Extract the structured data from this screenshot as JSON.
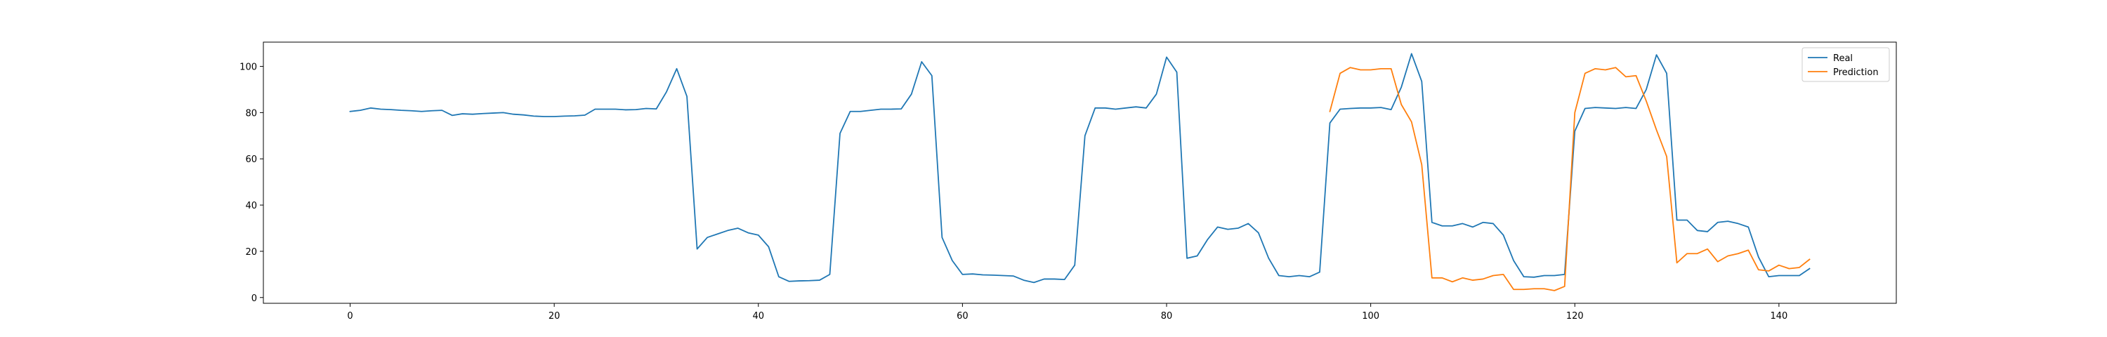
{
  "chart_data": {
    "type": "line",
    "title": "",
    "xlabel": "",
    "ylabel": "",
    "xlim": [
      -8.5,
      151.5
    ],
    "ylim": [
      -2.5,
      110.5
    ],
    "x_ticks": [
      0,
      20,
      40,
      60,
      80,
      100,
      120,
      140
    ],
    "y_ticks": [
      0,
      20,
      40,
      60,
      80,
      100
    ],
    "grid": false,
    "legend_position": "top-right",
    "series": [
      {
        "name": "Real",
        "color": "#1f77b4",
        "x_start": 0,
        "y": [
          80.5,
          81,
          82,
          81.5,
          81.3,
          81,
          80.8,
          80.5,
          80.8,
          81,
          78.8,
          79.5,
          79.3,
          79.6,
          79.8,
          80,
          79.3,
          79,
          78.5,
          78.3,
          78.3,
          78.5,
          78.6,
          78.9,
          81.5,
          81.5,
          81.5,
          81.2,
          81.3,
          81.8,
          81.6,
          89,
          99,
          87,
          21,
          26,
          27.5,
          29,
          30,
          28,
          27,
          22,
          9,
          7,
          7.2,
          7.3,
          7.5,
          10,
          71,
          80.5,
          80.5,
          81,
          81.5,
          81.5,
          81.6,
          88,
          102,
          96,
          26,
          16,
          10,
          10.2,
          9.8,
          9.7,
          9.5,
          9.3,
          7.5,
          6.5,
          8,
          8,
          7.8,
          14,
          70,
          82,
          82,
          81.5,
          82,
          82.5,
          82,
          88,
          104,
          97.5,
          17,
          18,
          25,
          30.5,
          29.5,
          30,
          32,
          28,
          17,
          9.5,
          9,
          9.5,
          9,
          11,
          75.5,
          81.5,
          81.8,
          82,
          82,
          82.2,
          81.3,
          91,
          105.5,
          93.5,
          32.5,
          31,
          31,
          32,
          30.5,
          32.5,
          32,
          27,
          16,
          9,
          8.8,
          9.5,
          9.5,
          10,
          72,
          81.8,
          82.2,
          82,
          81.8,
          82.2,
          81.8,
          90,
          105,
          97,
          33.5,
          33.5,
          29,
          28.5,
          32.5,
          33,
          32,
          30.5,
          17.5,
          9,
          9.5,
          9.5,
          9.5,
          12.5
        ]
      },
      {
        "name": "Prediction",
        "color": "#ff7f0e",
        "x_start": 96,
        "y": [
          80.5,
          97,
          99.5,
          98.5,
          98.5,
          99,
          99,
          83.5,
          76,
          57.5,
          8.5,
          8.5,
          6.8,
          8.5,
          7.5,
          8,
          9.5,
          10,
          3.5,
          3.5,
          3.8,
          3.8,
          3,
          4.8,
          80,
          97,
          99,
          98.5,
          99.5,
          95.5,
          96,
          85,
          72.5,
          61,
          15,
          19,
          19,
          21,
          15.5,
          18,
          19,
          20.5,
          12,
          11.5,
          14,
          12.5,
          13,
          16.5
        ]
      }
    ]
  }
}
